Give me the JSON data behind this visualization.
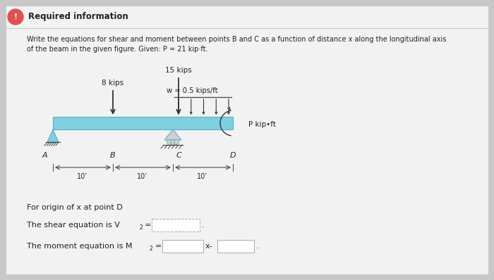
{
  "bg_color": "#c8c8c8",
  "card_color": "#f2f2f2",
  "title_text": "Required information",
  "desc_line1": "Write the equations for shear and moment between points B and C as a function of distance x along the longitudinal axis",
  "desc_line2": "of the beam in the given figure. Given: P = 21 kip·ft.",
  "beam_color": "#7ecfe0",
  "beam_edge": "#5aafca",
  "label_8kips": "8 kips",
  "label_15kips": "15 kips",
  "label_w": "w = 0.5 kips/ft",
  "label_P": "P kip•ft",
  "label_A": "A",
  "label_B": "B",
  "label_C": "C",
  "label_D": "D",
  "dim_text": "10’",
  "text_for_origin": "For origin of x at point D",
  "text_shear": "The shear equation is V",
  "text_shear2": "2",
  "text_shear3": "=",
  "text_moment": "The moment equation is M",
  "text_moment2": "2",
  "text_moment3": "=",
  "text_x": "x-",
  "text_dot": ".",
  "icon_color": "#ffffff",
  "icon_bg": "#e05050",
  "line_color": "#444444",
  "arrow_color": "#333333",
  "text_color": "#222222",
  "card_border": "#cccccc"
}
